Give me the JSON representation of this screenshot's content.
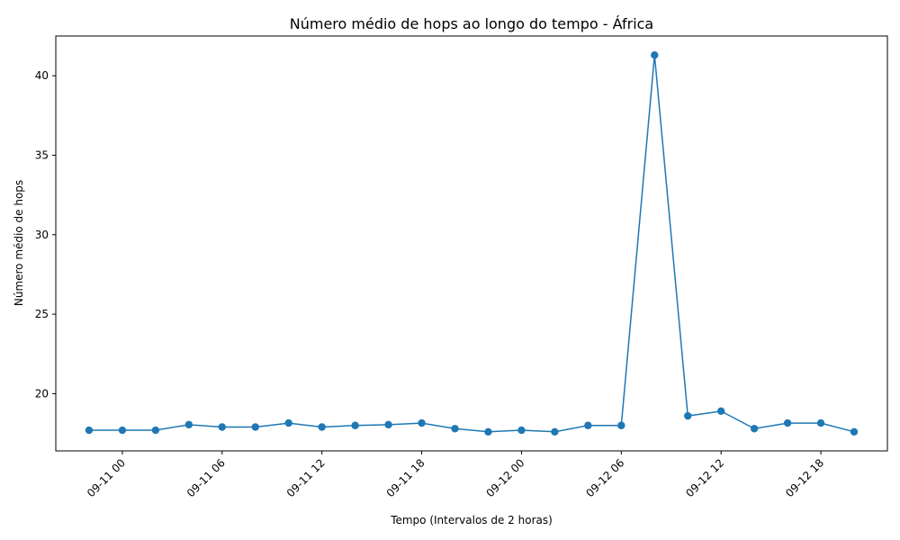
{
  "chart_data": {
    "type": "line",
    "title": "Número médio de hops ao longo do tempo - África",
    "xlabel": "Tempo (Intervalos de 2 horas)",
    "ylabel": "Número médio de hops",
    "x": [
      "09-10 22:00",
      "09-11 00:00",
      "09-11 02:00",
      "09-11 04:00",
      "09-11 06:00",
      "09-11 08:00",
      "09-11 10:00",
      "09-11 12:00",
      "09-11 14:00",
      "09-11 16:00",
      "09-11 18:00",
      "09-11 20:00",
      "09-11 22:00",
      "09-12 00:00",
      "09-12 02:00",
      "09-12 04:00",
      "09-12 06:00",
      "09-12 08:00",
      "09-12 10:00",
      "09-12 12:00",
      "09-12 14:00",
      "09-12 16:00",
      "09-12 18:00",
      "09-12 20:00"
    ],
    "series": [
      {
        "color": "#1f77b4",
        "marker": "circle",
        "values": [
          17.7,
          17.7,
          17.7,
          18.05,
          17.9,
          17.9,
          18.15,
          17.9,
          18.0,
          18.05,
          18.15,
          17.8,
          17.6,
          17.7,
          17.6,
          18.0,
          18.0,
          41.3,
          18.6,
          18.9,
          17.8,
          18.15,
          18.15,
          17.6
        ]
      }
    ],
    "x_ticks": [
      "09-11 00",
      "09-11 06",
      "09-11 12",
      "09-11 18",
      "09-12 00",
      "09-12 06",
      "09-12 12",
      "09-12 18"
    ],
    "y_ticks": [
      20,
      25,
      30,
      35,
      40
    ],
    "ylim": [
      16.4,
      42.5
    ],
    "xlim": [
      "09-10 20:00",
      "09-12 22:00"
    ],
    "grid": false,
    "legend": "none"
  }
}
